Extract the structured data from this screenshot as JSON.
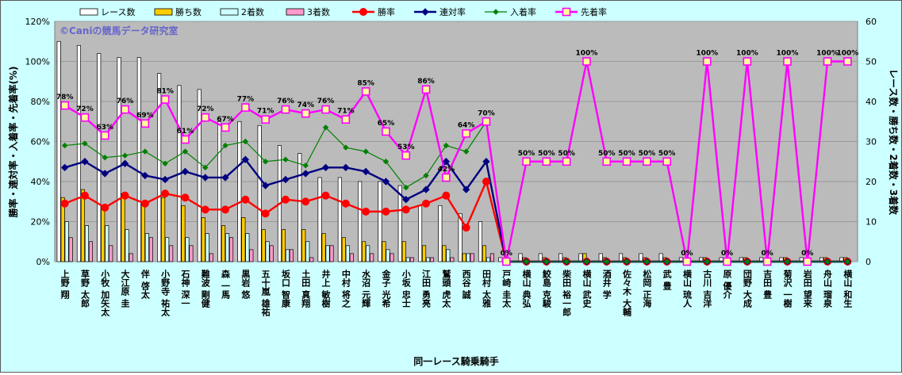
{
  "chart_data": {
    "type": "bar",
    "watermark": "©Caniの競馬データ研究室",
    "xlabel": "同一レース騎乗騎手",
    "ylabel_left": "勝率・連対率・入着率・先着率(%)",
    "ylabel_right": "レース数・勝ち数・2着数・3着数",
    "ylim_left": [
      0,
      120
    ],
    "ylim_right": [
      0,
      60
    ],
    "y_ticks_left": [
      "0%",
      "20%",
      "40%",
      "60%",
      "80%",
      "100%",
      "120%"
    ],
    "y_ticks_right": [
      "0",
      "10",
      "20",
      "30",
      "40",
      "50",
      "60"
    ],
    "grid": true,
    "legend_position": "top",
    "categories": [
      "上野 翔",
      "草野 太郎",
      "小牧 加矢太",
      "大江原 圭",
      "伴 啓太",
      "小野寺 祐太",
      "石神 深一",
      "難波 剛健",
      "森 一馬",
      "黒岩 悠",
      "五十嵐 雄祐",
      "坂口 智康",
      "土田 真翔",
      "井上 敏樹",
      "中村 将之",
      "水沼 元輝",
      "金子 光希",
      "小坂 忠士",
      "江田 勇亮",
      "鷲頭 虎太",
      "西谷 誠",
      "田村 太雅",
      "戸崎 圭太",
      "横山 典弘",
      "鮫島 克駿",
      "柴田 裕一郎",
      "横山 武史",
      "酒井 学",
      "佐々木 大輔",
      "松岡 正海",
      "武 豊",
      "横山 琉人",
      "古川 吉洋",
      "原 優介",
      "団野 大成",
      "吉田 豊",
      "菊沢 一樹",
      "岩田 望来",
      "舟山 瑠泉",
      "横山 和生"
    ],
    "bar_series": [
      {
        "name": "レース数",
        "color": "#ffffff",
        "values": [
          55,
          54,
          52,
          51,
          51,
          47,
          44,
          43,
          35,
          35,
          34,
          29,
          27,
          21,
          21,
          20,
          20,
          19,
          14,
          14,
          12,
          10,
          1,
          2,
          2,
          2,
          2,
          2,
          2,
          2,
          2,
          1,
          1,
          1,
          1,
          1,
          1,
          1,
          1,
          1
        ]
      },
      {
        "name": "勝ち数",
        "color": "#ffcc00",
        "values": [
          16,
          18,
          14,
          17,
          15,
          16,
          14,
          11,
          9,
          11,
          8,
          8,
          8,
          7,
          6,
          5,
          5,
          5,
          4,
          4,
          2,
          4,
          0,
          1,
          1,
          1,
          2,
          1,
          1,
          1,
          1,
          0,
          1,
          0,
          1,
          0,
          1,
          0,
          1,
          1
        ]
      },
      {
        "name": "2着数",
        "color": "#ccffff",
        "values": [
          10,
          9,
          9,
          8,
          7,
          6,
          6,
          7,
          7,
          7,
          5,
          3,
          5,
          4,
          4,
          4,
          3,
          1,
          1,
          3,
          2,
          1,
          0,
          0,
          0,
          0,
          0,
          0,
          0,
          0,
          0,
          0,
          0,
          0,
          0,
          0,
          0,
          0,
          0,
          0
        ]
      },
      {
        "name": "3着数",
        "color": "#ff99cc",
        "values": [
          6,
          5,
          4,
          2,
          6,
          4,
          4,
          2,
          6,
          3,
          4,
          3,
          1,
          4,
          2,
          2,
          2,
          1,
          1,
          1,
          2,
          2,
          0,
          0,
          0,
          0,
          0,
          0,
          0,
          0,
          0,
          0,
          0,
          0,
          0,
          0,
          0,
          0,
          0,
          0
        ]
      }
    ],
    "line_series": [
      {
        "name": "勝率",
        "color": "#ff0000",
        "marker": "circle",
        "values": [
          29,
          33,
          27,
          33,
          29,
          34,
          32,
          26,
          26,
          31,
          24,
          31,
          30,
          33,
          29,
          25,
          25,
          26,
          29,
          33,
          17,
          40,
          0,
          0,
          0,
          0,
          0,
          0,
          0,
          0,
          0,
          0,
          0,
          0,
          0,
          0,
          0,
          0,
          0,
          0
        ]
      },
      {
        "name": "連対率",
        "color": "#000080",
        "marker": "diamond",
        "values": [
          47,
          50,
          44,
          49,
          43,
          41,
          45,
          42,
          42,
          51,
          38,
          41,
          44,
          47,
          47,
          45,
          40,
          31,
          36,
          50,
          36,
          50,
          0,
          0,
          0,
          0,
          0,
          0,
          0,
          0,
          0,
          0,
          0,
          0,
          0,
          0,
          0,
          0,
          0,
          0
        ]
      },
      {
        "name": "入着率",
        "color": "#008000",
        "marker": "diamond",
        "values": [
          58,
          59,
          52,
          53,
          55,
          49,
          55,
          47,
          58,
          60,
          50,
          51,
          48,
          67,
          57,
          55,
          50,
          37,
          43,
          58,
          55,
          70,
          0,
          0,
          0,
          0,
          0,
          0,
          0,
          0,
          0,
          0,
          0,
          0,
          0,
          0,
          0,
          0,
          0,
          0
        ]
      },
      {
        "name": "先着率",
        "color": "#ff00ff",
        "marker": "square",
        "values": [
          78,
          72,
          63,
          76,
          69,
          81,
          61,
          72,
          67,
          77,
          71,
          76,
          74,
          76,
          71,
          85,
          65,
          53,
          86,
          42,
          64,
          70,
          0,
          50,
          50,
          50,
          100,
          50,
          50,
          50,
          50,
          0,
          100,
          0,
          100,
          0,
          100,
          0,
          100,
          100
        ]
      }
    ],
    "point_labels": [
      "78%",
      "72%",
      "63%",
      "76%",
      "69%",
      "81%",
      "61%",
      "72%",
      "67%",
      "77%",
      "71%",
      "76%",
      "74%",
      "76%",
      "71%",
      "85%",
      "65%",
      "53%",
      "86%",
      "42%",
      "64%",
      "70%",
      "0%",
      "50%",
      "50%",
      "50%",
      "100%",
      "50%",
      "50%",
      "50%",
      "50%",
      "0%",
      "100%",
      "0%",
      "100%",
      "0%",
      "100%",
      "0%",
      "100%",
      "100%"
    ]
  }
}
